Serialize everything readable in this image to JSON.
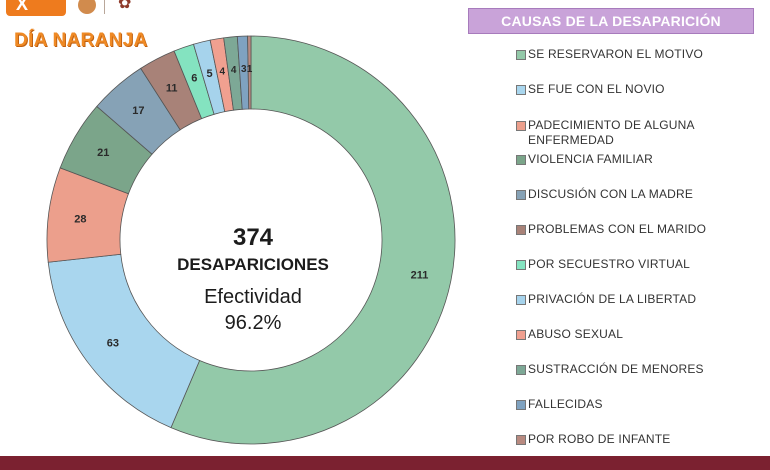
{
  "header": {
    "logo_text": "X",
    "badge_title": "DÍA NARANJA"
  },
  "center": {
    "total": "374",
    "label": "DESAPARICIONES",
    "effectiveness_label": "Efectividad",
    "effectiveness_value": "96.2%"
  },
  "colors": {
    "legend_header_bg": "#c9a3d9",
    "bottom_band": "#7b2130",
    "title_orange": "#ef8a25"
  },
  "chart_data": {
    "type": "pie",
    "donut": true,
    "legend_title": "CAUSAS DE LA DESAPARICIÓN",
    "total": 374,
    "categories": [
      "SE RESERVARON EL MOTIVO",
      "SE FUE CON EL NOVIO",
      "PADECIMIENTO DE ALGUNA ENFERMEDAD",
      "VIOLENCIA FAMILIAR",
      "DISCUSIÓN CON LA MADRE",
      "PROBLEMAS CON EL MARIDO",
      "POR SECUESTRO VIRTUAL",
      "PRIVACIÓN DE LA LIBERTAD",
      "ABUSO SEXUAL",
      "SUSTRACCIÓN DE MENORES",
      "FALLECIDAS",
      "POR ROBO DE INFANTE"
    ],
    "values": [
      211,
      63,
      28,
      21,
      17,
      11,
      6,
      5,
      4,
      4,
      3,
      1
    ],
    "colors": [
      "#93c9a9",
      "#a9d6ee",
      "#ec9f8c",
      "#7ba58a",
      "#86a2b6",
      "#a88278",
      "#84e3c0",
      "#a6d3ec",
      "#f0a090",
      "#7da896",
      "#7fa2c0",
      "#b88a80"
    ],
    "legend_position": "right"
  }
}
